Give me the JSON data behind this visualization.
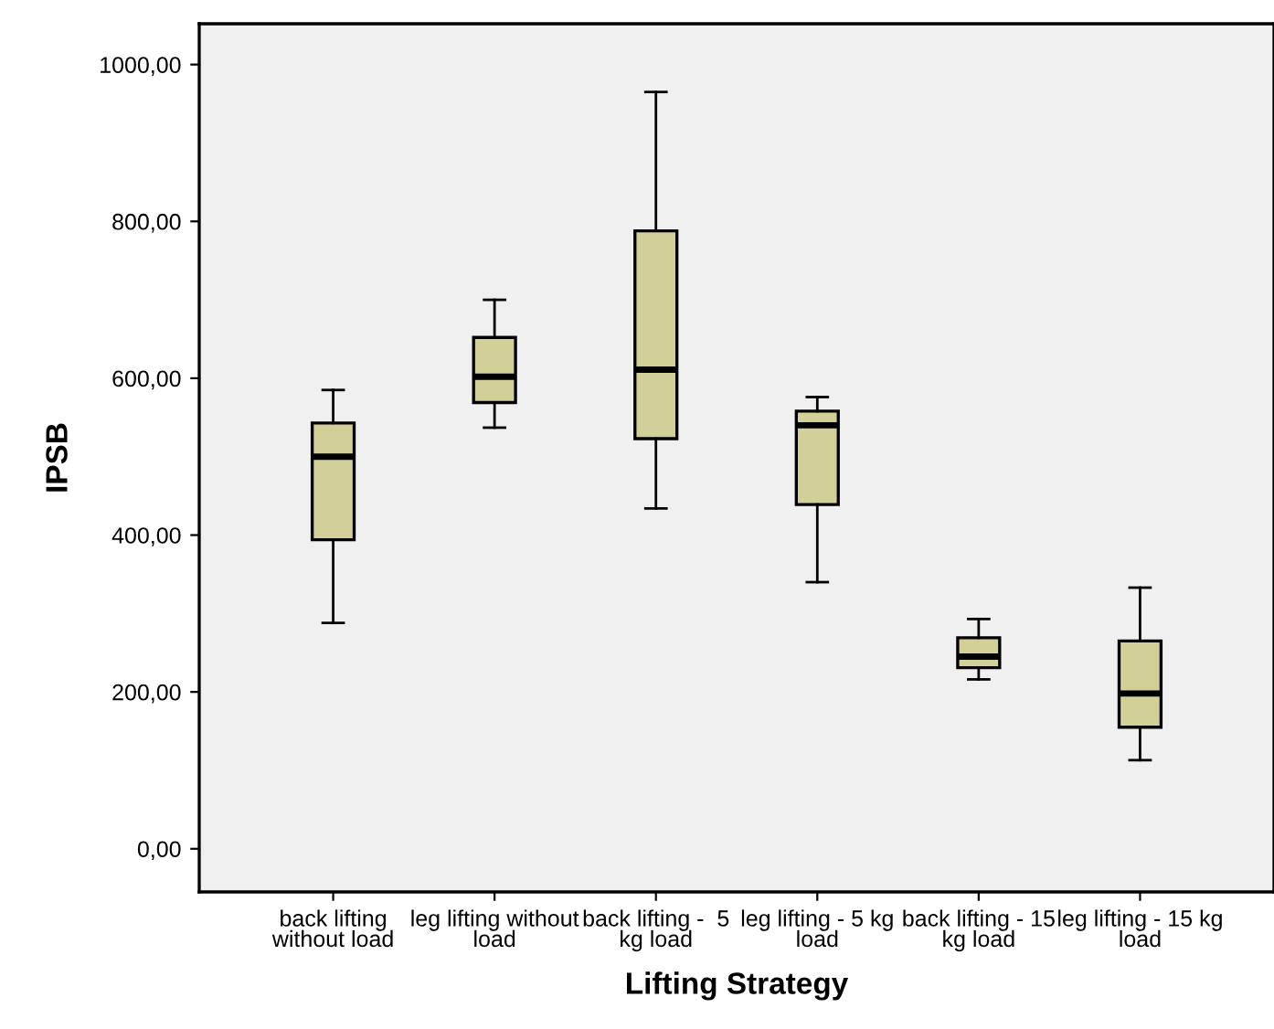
{
  "chart_data": {
    "type": "box",
    "xlabel": "Lifting Strategy",
    "ylabel": "IPSB",
    "categories": [
      "back lifting\nwithout load",
      "leg lifting without\nload",
      "back lifting -  5\nkg load",
      "leg lifting - 5 kg\nload",
      "back lifting - 15\nkg load",
      "leg lifting - 15 kg\nload"
    ],
    "boxes": [
      {
        "low": 288,
        "q1": 394,
        "median": 500,
        "q3": 543,
        "high": 585
      },
      {
        "low": 537,
        "q1": 569,
        "median": 602,
        "q3": 652,
        "high": 700
      },
      {
        "low": 434,
        "q1": 523,
        "median": 611,
        "q3": 788,
        "high": 965
      },
      {
        "low": 340,
        "q1": 439,
        "median": 540,
        "q3": 558,
        "high": 576
      },
      {
        "low": 216,
        "q1": 231,
        "median": 245,
        "q3": 269,
        "high": 293
      },
      {
        "low": 113,
        "q1": 155,
        "median": 198,
        "q3": 265,
        "high": 333
      }
    ],
    "color": "#d3cf98",
    "ylim": [
      -55,
      1052
    ],
    "yticks": [
      {
        "value": 0,
        "label": "0,00"
      },
      {
        "value": 200,
        "label": "200,00"
      },
      {
        "value": 400,
        "label": "400,00"
      },
      {
        "value": 600,
        "label": "600,00"
      },
      {
        "value": 800,
        "label": "800,00"
      },
      {
        "value": 1000,
        "label": "1000,00"
      }
    ],
    "grid": false
  }
}
